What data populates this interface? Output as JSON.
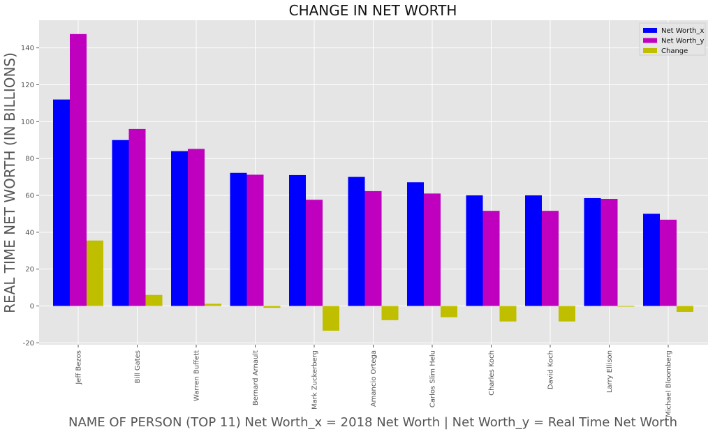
{
  "chart_data": {
    "type": "bar",
    "title": "CHANGE IN NET WORTH",
    "xlabel": "NAME OF PERSON (TOP 11) Net Worth_x = 2018 Net Worth  |  Net Worth_y = Real Time Net Worth",
    "ylabel": "REAL TIME NET WORTH (IN BILLIONS)",
    "ylim": [
      -21,
      155
    ],
    "yticks": [
      -20,
      0,
      20,
      40,
      60,
      80,
      100,
      120,
      140
    ],
    "grid": true,
    "legend_position": "top-right",
    "categories": [
      "Jeff Bezos",
      "Bill Gates",
      "Warren Buffett",
      "Bernard Arnault",
      "Mark Zuckerberg",
      "Amancio Ortega",
      "Carlos Slim Helu",
      "Charles Koch",
      "David Koch",
      "Larry Ellison",
      "Michael Bloomberg"
    ],
    "series": [
      {
        "name": "Net Worth_x",
        "color": "#0000ff",
        "values": [
          112,
          90,
          84,
          72.2,
          71,
          70,
          67.1,
          60,
          60,
          58.5,
          50
        ]
      },
      {
        "name": "Net Worth_y",
        "color": "#bf00bf",
        "values": [
          147.5,
          96,
          85.2,
          71.2,
          57.6,
          62.3,
          61,
          51.6,
          51.6,
          58.1,
          46.8
        ]
      },
      {
        "name": "Change",
        "color": "#bfbf00",
        "values": [
          35.5,
          6,
          1.2,
          -1,
          -13.4,
          -7.7,
          -6.1,
          -8.4,
          -8.4,
          -0.4,
          -3.2
        ]
      }
    ]
  }
}
